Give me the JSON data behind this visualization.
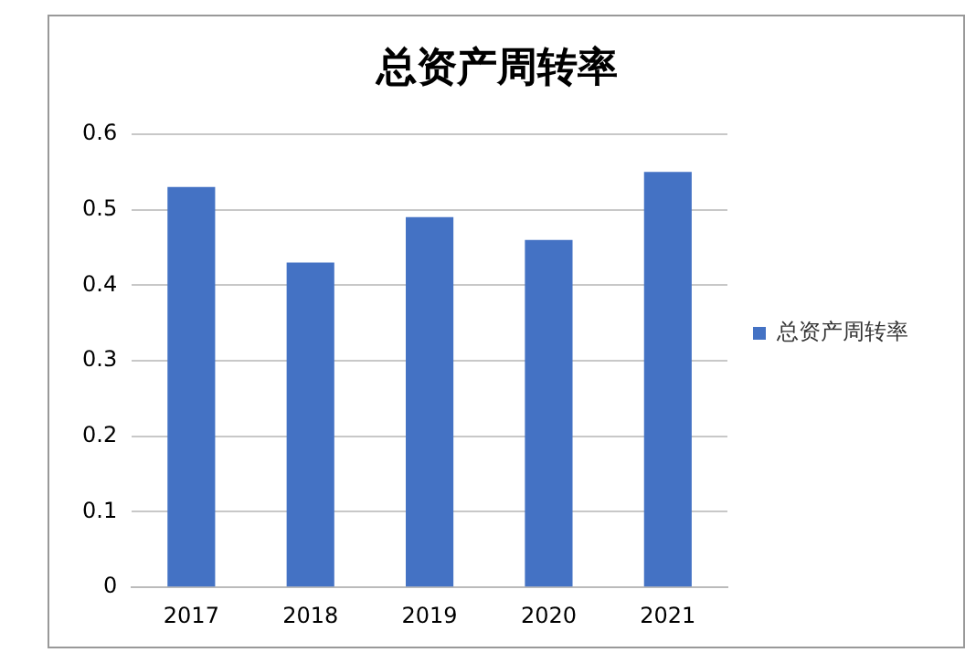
{
  "chart_data": {
    "type": "bar",
    "title": "总资产周转率",
    "categories": [
      "2017",
      "2018",
      "2019",
      "2020",
      "2021"
    ],
    "series": [
      {
        "name": "总资产周转率",
        "color": "#4472c4",
        "values": [
          0.53,
          0.43,
          0.49,
          0.46,
          0.55
        ]
      }
    ],
    "ylim": [
      0,
      0.6
    ],
    "yticks": [
      {
        "value": 0,
        "label": "0"
      },
      0.1,
      0.2,
      0.3,
      0.4,
      0.5,
      0.6
    ],
    "grid": "y",
    "legend": "right"
  }
}
